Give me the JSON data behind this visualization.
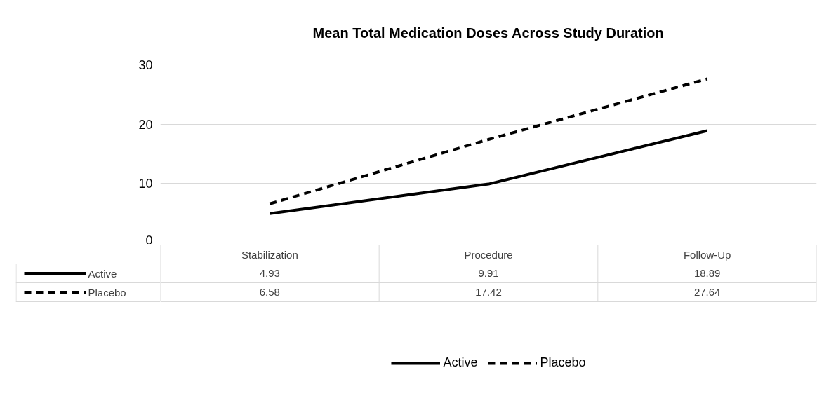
{
  "chart_data": {
    "type": "line",
    "title": "Mean Total Medication Doses Across Study Duration",
    "categories": [
      "Stabilization",
      "Procedure",
      "Follow-Up"
    ],
    "series": [
      {
        "name": "Active",
        "color": "#000000",
        "line_style": "solid",
        "values": [
          4.93,
          9.91,
          18.89
        ]
      },
      {
        "name": "Placebo",
        "color": "#000000",
        "line_style": "dashed",
        "values": [
          6.58,
          17.42,
          27.64
        ]
      }
    ],
    "ylim": [
      0,
      30
    ],
    "yticks": [
      0,
      10,
      20,
      30
    ],
    "grid": "y",
    "legend": "bottom",
    "data_labels": true
  }
}
